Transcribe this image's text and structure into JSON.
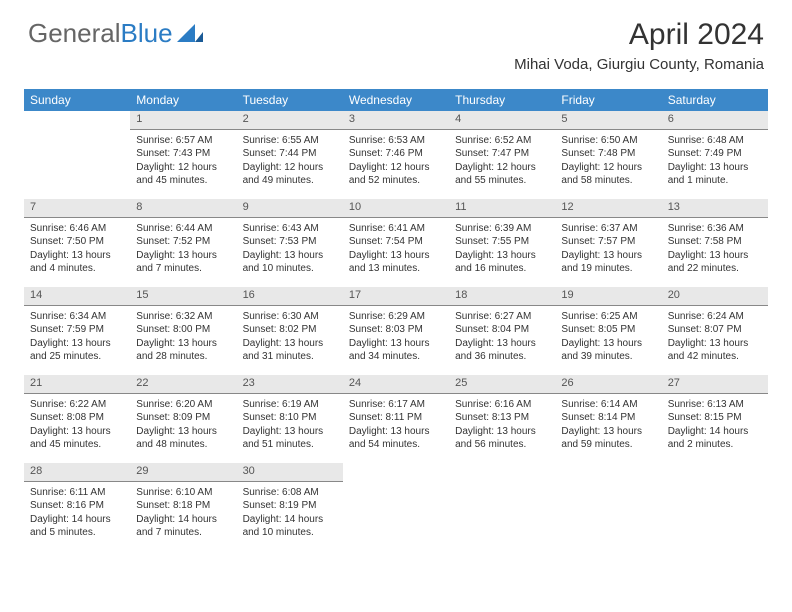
{
  "logo": {
    "text1": "General",
    "text2": "Blue"
  },
  "title": "April 2024",
  "location": "Mihai Voda, Giurgiu County, Romania",
  "colors": {
    "header_bg": "#3c88c9",
    "daynum_bg": "#e8e8e8",
    "text": "#333333",
    "logo_gray": "#666666",
    "logo_blue": "#2b7cc4"
  },
  "weekdays": [
    "Sunday",
    "Monday",
    "Tuesday",
    "Wednesday",
    "Thursday",
    "Friday",
    "Saturday"
  ],
  "weeks": [
    {
      "nums": [
        "",
        "1",
        "2",
        "3",
        "4",
        "5",
        "6"
      ],
      "cells": [
        "",
        "Sunrise: 6:57 AM\nSunset: 7:43 PM\nDaylight: 12 hours and 45 minutes.",
        "Sunrise: 6:55 AM\nSunset: 7:44 PM\nDaylight: 12 hours and 49 minutes.",
        "Sunrise: 6:53 AM\nSunset: 7:46 PM\nDaylight: 12 hours and 52 minutes.",
        "Sunrise: 6:52 AM\nSunset: 7:47 PM\nDaylight: 12 hours and 55 minutes.",
        "Sunrise: 6:50 AM\nSunset: 7:48 PM\nDaylight: 12 hours and 58 minutes.",
        "Sunrise: 6:48 AM\nSunset: 7:49 PM\nDaylight: 13 hours and 1 minute."
      ]
    },
    {
      "nums": [
        "7",
        "8",
        "9",
        "10",
        "11",
        "12",
        "13"
      ],
      "cells": [
        "Sunrise: 6:46 AM\nSunset: 7:50 PM\nDaylight: 13 hours and 4 minutes.",
        "Sunrise: 6:44 AM\nSunset: 7:52 PM\nDaylight: 13 hours and 7 minutes.",
        "Sunrise: 6:43 AM\nSunset: 7:53 PM\nDaylight: 13 hours and 10 minutes.",
        "Sunrise: 6:41 AM\nSunset: 7:54 PM\nDaylight: 13 hours and 13 minutes.",
        "Sunrise: 6:39 AM\nSunset: 7:55 PM\nDaylight: 13 hours and 16 minutes.",
        "Sunrise: 6:37 AM\nSunset: 7:57 PM\nDaylight: 13 hours and 19 minutes.",
        "Sunrise: 6:36 AM\nSunset: 7:58 PM\nDaylight: 13 hours and 22 minutes."
      ]
    },
    {
      "nums": [
        "14",
        "15",
        "16",
        "17",
        "18",
        "19",
        "20"
      ],
      "cells": [
        "Sunrise: 6:34 AM\nSunset: 7:59 PM\nDaylight: 13 hours and 25 minutes.",
        "Sunrise: 6:32 AM\nSunset: 8:00 PM\nDaylight: 13 hours and 28 minutes.",
        "Sunrise: 6:30 AM\nSunset: 8:02 PM\nDaylight: 13 hours and 31 minutes.",
        "Sunrise: 6:29 AM\nSunset: 8:03 PM\nDaylight: 13 hours and 34 minutes.",
        "Sunrise: 6:27 AM\nSunset: 8:04 PM\nDaylight: 13 hours and 36 minutes.",
        "Sunrise: 6:25 AM\nSunset: 8:05 PM\nDaylight: 13 hours and 39 minutes.",
        "Sunrise: 6:24 AM\nSunset: 8:07 PM\nDaylight: 13 hours and 42 minutes."
      ]
    },
    {
      "nums": [
        "21",
        "22",
        "23",
        "24",
        "25",
        "26",
        "27"
      ],
      "cells": [
        "Sunrise: 6:22 AM\nSunset: 8:08 PM\nDaylight: 13 hours and 45 minutes.",
        "Sunrise: 6:20 AM\nSunset: 8:09 PM\nDaylight: 13 hours and 48 minutes.",
        "Sunrise: 6:19 AM\nSunset: 8:10 PM\nDaylight: 13 hours and 51 minutes.",
        "Sunrise: 6:17 AM\nSunset: 8:11 PM\nDaylight: 13 hours and 54 minutes.",
        "Sunrise: 6:16 AM\nSunset: 8:13 PM\nDaylight: 13 hours and 56 minutes.",
        "Sunrise: 6:14 AM\nSunset: 8:14 PM\nDaylight: 13 hours and 59 minutes.",
        "Sunrise: 6:13 AM\nSunset: 8:15 PM\nDaylight: 14 hours and 2 minutes."
      ]
    },
    {
      "nums": [
        "28",
        "29",
        "30",
        "",
        "",
        "",
        ""
      ],
      "cells": [
        "Sunrise: 6:11 AM\nSunset: 8:16 PM\nDaylight: 14 hours and 5 minutes.",
        "Sunrise: 6:10 AM\nSunset: 8:18 PM\nDaylight: 14 hours and 7 minutes.",
        "Sunrise: 6:08 AM\nSunset: 8:19 PM\nDaylight: 14 hours and 10 minutes.",
        "",
        "",
        "",
        ""
      ]
    }
  ]
}
